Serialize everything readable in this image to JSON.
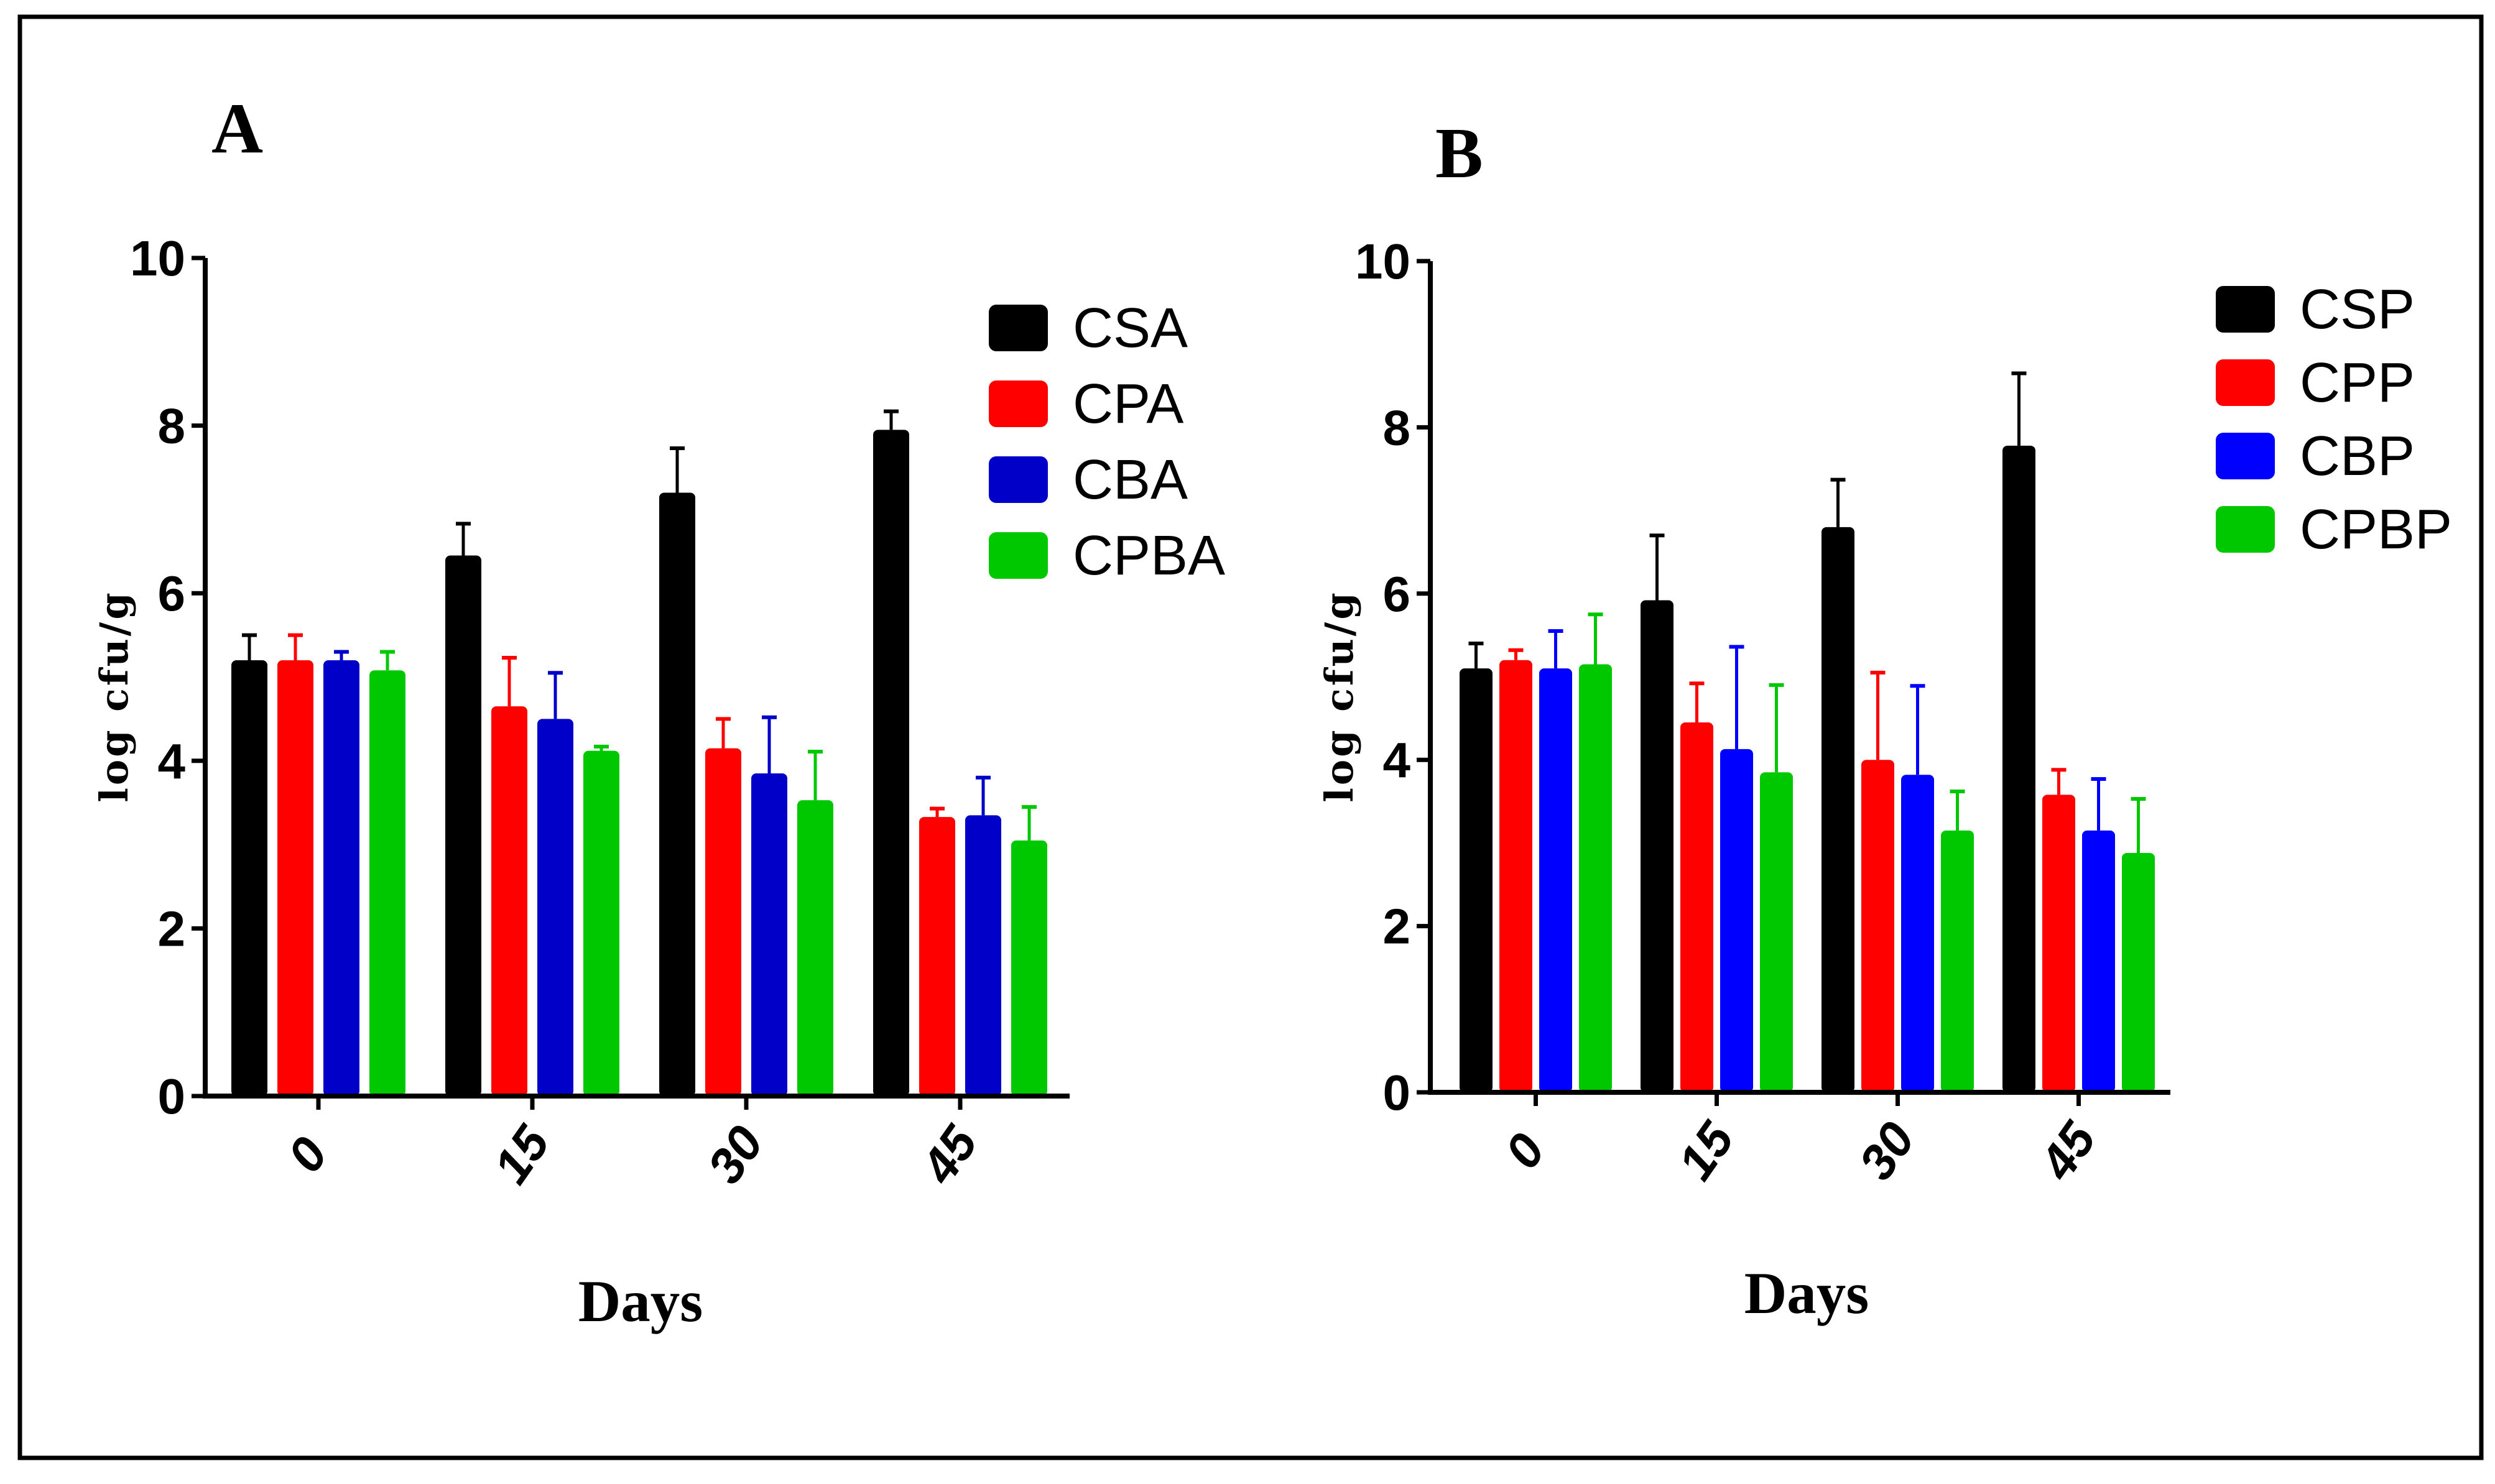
{
  "chart_data": [
    {
      "type": "bar",
      "panel_label": "A",
      "xlabel": "Days",
      "ylabel": "log cfu/g",
      "ylim": [
        0,
        10
      ],
      "yticks": [
        0,
        2,
        4,
        6,
        8,
        10
      ],
      "categories": [
        "0",
        "15",
        "30",
        "45"
      ],
      "legend_position": "top-right",
      "series": [
        {
          "name": "CSA",
          "color": "#000000",
          "values": [
            5.2,
            6.45,
            7.2,
            7.95
          ],
          "errors": [
            0.3,
            0.38,
            0.53,
            0.22
          ]
        },
        {
          "name": "CPA",
          "color": "#ff0000",
          "values": [
            5.2,
            4.65,
            4.15,
            3.33
          ],
          "errors": [
            0.3,
            0.58,
            0.35,
            0.1
          ]
        },
        {
          "name": "CBA",
          "color": "#0000c8",
          "values": [
            5.2,
            4.5,
            3.85,
            3.35
          ],
          "errors": [
            0.1,
            0.55,
            0.67,
            0.45
          ]
        },
        {
          "name": "CPBA",
          "color": "#00c800",
          "values": [
            5.08,
            4.12,
            3.53,
            3.05
          ],
          "errors": [
            0.22,
            0.05,
            0.58,
            0.4
          ]
        }
      ]
    },
    {
      "type": "bar",
      "panel_label": "B",
      "xlabel": "Days",
      "ylabel": "log cfu/g",
      "ylim": [
        0,
        10
      ],
      "yticks": [
        0,
        2,
        4,
        6,
        8,
        10
      ],
      "categories": [
        "0",
        "15",
        "30",
        "45"
      ],
      "legend_position": "top-right",
      "series": [
        {
          "name": "CSP",
          "color": "#000000",
          "values": [
            5.1,
            5.92,
            6.8,
            7.78
          ],
          "errors": [
            0.3,
            0.78,
            0.57,
            0.87
          ]
        },
        {
          "name": "CPP",
          "color": "#ff0000",
          "values": [
            5.2,
            4.45,
            4.0,
            3.58
          ],
          "errors": [
            0.12,
            0.47,
            1.05,
            0.3
          ]
        },
        {
          "name": "CBP",
          "color": "#0000ff",
          "values": [
            5.1,
            4.13,
            3.82,
            3.15
          ],
          "errors": [
            0.45,
            1.23,
            1.07,
            0.62
          ]
        },
        {
          "name": "CPBP",
          "color": "#00c800",
          "values": [
            5.15,
            3.85,
            3.15,
            2.88
          ],
          "errors": [
            0.6,
            1.05,
            0.47,
            0.65
          ]
        }
      ]
    }
  ]
}
